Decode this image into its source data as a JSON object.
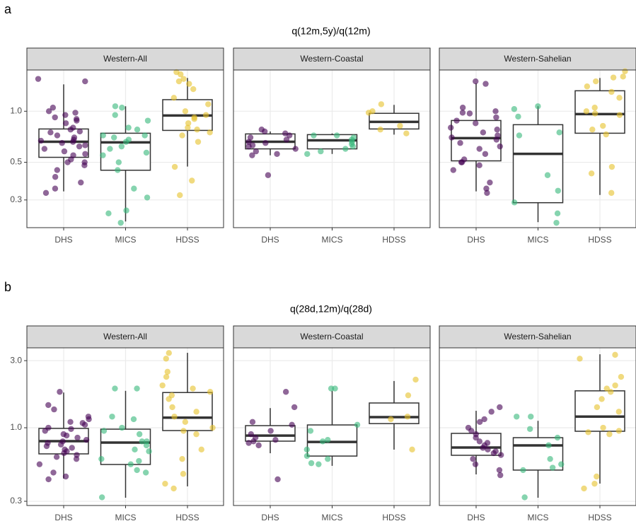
{
  "chart_data": [
    {
      "type": "box",
      "label": "a",
      "title": "q(12m,5y)/q(12m)",
      "log_scale": true,
      "grid": true,
      "ylim": [
        0.206,
        1.75
      ],
      "yticks": [
        0.3,
        0.5,
        {
          "value": 1,
          "label": "1.0"
        }
      ],
      "categories": [
        "DHS",
        "MICS",
        "HDSS"
      ],
      "colors": [
        "#440154",
        "#35b779",
        "#e6c12a"
      ],
      "facets": [
        {
          "name": "Western-All",
          "boxes": [
            {
              "min": 0.337,
              "q1": 0.535,
              "median": 0.661,
              "q3": 0.786,
              "max": 1.44
            },
            {
              "min": 0.224,
              "q1": 0.449,
              "median": 0.655,
              "q3": 0.742,
              "max": 1.07
            },
            {
              "min": 0.472,
              "q1": 0.771,
              "median": 0.944,
              "q3": 1.17,
              "max": 1.57
            }
          ],
          "points": [
            [
              1.55,
              1.5,
              1.05,
              1.0,
              0.98,
              0.95,
              0.92,
              0.9,
              0.88,
              0.85,
              0.8,
              0.78,
              0.76,
              0.75,
              0.72,
              0.7,
              0.68,
              0.67,
              0.66,
              0.65,
              0.63,
              0.62,
              0.6,
              0.58,
              0.56,
              0.55,
              0.52,
              0.5,
              0.5,
              0.48,
              0.45,
              0.41,
              0.38,
              0.35,
              0.33
            ],
            [
              1.07,
              1.05,
              0.95,
              0.88,
              0.8,
              0.78,
              0.72,
              0.72,
              0.7,
              0.68,
              0.66,
              0.62,
              0.6,
              0.57,
              0.55,
              0.5,
              0.45,
              0.35,
              0.31,
              0.26,
              0.25,
              0.22
            ],
            [
              1.7,
              1.65,
              1.55,
              1.5,
              1.45,
              1.35,
              1.2,
              1.1,
              1.0,
              0.95,
              0.92,
              0.9,
              0.85,
              0.8,
              0.78,
              0.75,
              0.72,
              0.66,
              0.47,
              0.39,
              0.32
            ]
          ]
        },
        {
          "name": "Western-Coastal",
          "boxes": [
            {
              "min": 0.55,
              "q1": 0.6,
              "median": 0.661,
              "q3": 0.735,
              "max": 0.76
            },
            {
              "min": 0.56,
              "q1": 0.6,
              "median": 0.674,
              "q3": 0.728,
              "max": 0.74
            },
            {
              "min": 0.728,
              "q1": 0.786,
              "median": 0.866,
              "q3": 0.972,
              "max": 1.09
            }
          ],
          "points": [
            [
              0.78,
              0.76,
              0.74,
              0.72,
              0.7,
              0.68,
              0.66,
              0.65,
              0.63,
              0.62,
              0.6,
              0.58,
              0.56,
              0.55,
              0.42
            ],
            [
              0.72,
              0.72,
              0.7,
              0.68,
              0.66,
              0.64,
              0.62,
              0.6,
              0.58,
              0.56
            ],
            [
              1.1,
              1.0,
              0.98,
              0.82,
              0.78,
              0.74
            ]
          ]
        },
        {
          "name": "Western-Sahelian",
          "boxes": [
            {
              "min": 0.337,
              "q1": 0.51,
              "median": 0.694,
              "q3": 0.882,
              "max": 1.46
            },
            {
              "min": 0.222,
              "q1": 0.289,
              "median": 0.561,
              "q3": 0.833,
              "max": 1.07
            },
            {
              "min": 0.321,
              "q1": 0.742,
              "median": 0.962,
              "q3": 1.32,
              "max": 1.57
            }
          ],
          "points": [
            [
              1.5,
              1.45,
              1.05,
              1.0,
              0.98,
              0.97,
              0.92,
              0.88,
              0.85,
              0.8,
              0.78,
              0.75,
              0.72,
              0.7,
              0.68,
              0.65,
              0.62,
              0.6,
              0.56,
              0.52,
              0.5,
              0.5,
              0.48,
              0.45,
              0.38,
              0.35,
              0.33
            ],
            [
              1.07,
              1.03,
              0.93,
              0.75,
              0.72,
              0.42,
              0.34,
              0.29,
              0.25,
              0.22
            ],
            [
              1.72,
              1.6,
              1.58,
              1.5,
              1.4,
              1.3,
              1.2,
              1.05,
              1.0,
              0.97,
              0.95,
              0.82,
              0.78,
              0.73,
              0.47,
              0.43,
              0.33
            ]
          ]
        }
      ]
    },
    {
      "type": "box",
      "label": "b",
      "title": "q(28d,12m)/q(28d)",
      "log_scale": true,
      "grid": true,
      "ylim": [
        0.28,
        3.7
      ],
      "yticks": [
        0.3,
        {
          "value": 1,
          "label": "1.0"
        },
        {
          "value": 3,
          "label": "3.0"
        }
      ],
      "categories": [
        "DHS",
        "MICS",
        "HDSS"
      ],
      "colors": [
        "#440154",
        "#35b779",
        "#e6c12a"
      ],
      "facets": [
        {
          "name": "Western-All",
          "boxes": [
            {
              "min": 0.435,
              "q1": 0.652,
              "median": 0.803,
              "q3": 0.989,
              "max": 1.78
            },
            {
              "min": 0.318,
              "q1": 0.548,
              "median": 0.784,
              "q3": 0.977,
              "max": 1.83
            },
            {
              "min": 0.383,
              "q1": 0.955,
              "median": 1.18,
              "q3": 1.78,
              "max": 3.41
            }
          ],
          "points": [
            [
              1.8,
              1.45,
              1.35,
              1.2,
              1.15,
              1.1,
              1.08,
              1.05,
              1.0,
              0.98,
              0.95,
              0.9,
              0.88,
              0.85,
              0.82,
              0.8,
              0.78,
              0.76,
              0.74,
              0.72,
              0.7,
              0.68,
              0.66,
              0.64,
              0.62,
              0.6,
              0.55,
              0.48,
              0.45,
              0.43
            ],
            [
              1.9,
              1.9,
              1.2,
              1.15,
              1.0,
              0.95,
              0.9,
              0.8,
              0.8,
              0.75,
              0.7,
              0.68,
              0.6,
              0.58,
              0.55,
              0.5,
              0.48,
              0.32
            ],
            [
              3.4,
              3.1,
              2.5,
              2.3,
              2.0,
              1.9,
              1.8,
              1.7,
              1.6,
              1.4,
              1.3,
              1.2,
              1.1,
              1.0,
              0.95,
              0.9,
              0.7,
              0.6,
              0.47,
              0.4,
              0.37
            ]
          ]
        },
        {
          "name": "Western-Coastal",
          "boxes": [
            {
              "min": 0.659,
              "q1": 0.803,
              "median": 0.88,
              "q3": 1.035,
              "max": 1.38
            },
            {
              "min": 0.536,
              "q1": 0.629,
              "median": 0.793,
              "q3": 1.047,
              "max": 1.83
            },
            {
              "min": 0.699,
              "q1": 1.07,
              "median": 1.19,
              "q3": 1.5,
              "max": 2.15
            }
          ],
          "points": [
            [
              1.8,
              1.4,
              1.1,
              1.05,
              0.95,
              0.9,
              0.85,
              0.82,
              0.8,
              0.78,
              0.75,
              0.43
            ],
            [
              1.9,
              1.9,
              1.05,
              0.95,
              0.82,
              0.8,
              0.7,
              0.63,
              0.6,
              0.56,
              0.55
            ],
            [
              2.2,
              1.7,
              1.2,
              1.15,
              0.7
            ]
          ]
        },
        {
          "name": "Western-Sahelian",
          "boxes": [
            {
              "min": 0.466,
              "q1": 0.637,
              "median": 0.723,
              "q3": 0.912,
              "max": 1.32
            },
            {
              "min": 0.318,
              "q1": 0.5,
              "median": 0.749,
              "q3": 0.85,
              "max": 1.12
            },
            {
              "min": 0.401,
              "q1": 0.944,
              "median": 1.2,
              "q3": 1.83,
              "max": 3.33
            }
          ],
          "points": [
            [
              1.4,
              1.3,
              1.15,
              1.1,
              1.0,
              0.95,
              0.9,
              0.85,
              0.8,
              0.78,
              0.75,
              0.72,
              0.7,
              0.68,
              0.66,
              0.64,
              0.6,
              0.55,
              0.5,
              0.46
            ],
            [
              1.2,
              1.2,
              0.98,
              0.85,
              0.75,
              0.6,
              0.55,
              0.52,
              0.5,
              0.32
            ],
            [
              3.3,
              3.1,
              2.3,
              2.0,
              1.9,
              1.8,
              1.6,
              1.4,
              1.3,
              1.0,
              0.95,
              0.93,
              0.9,
              0.45,
              0.4,
              0.37
            ]
          ]
        }
      ]
    }
  ]
}
